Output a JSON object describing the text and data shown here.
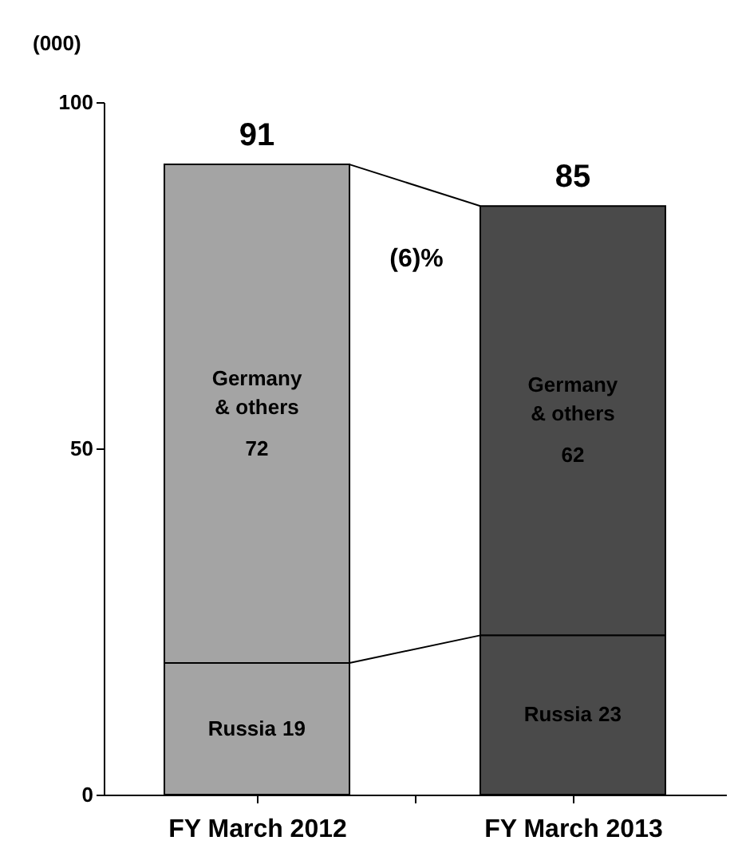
{
  "chart_data": {
    "type": "bar",
    "stacked": true,
    "ylabel": "(000)",
    "categories": [
      "FY March 2012",
      "FY March 2013"
    ],
    "series": [
      {
        "name": "Russia",
        "colors": [
          "#a4a4a4",
          "#4a4a4a"
        ],
        "values": [
          19,
          23
        ]
      },
      {
        "name": "Germany & others",
        "colors": [
          "#a4a4a4",
          "#4a4a4a"
        ],
        "values": [
          72,
          62
        ]
      }
    ],
    "totals": [
      "91",
      "85"
    ],
    "data_labels": true,
    "annotations": [
      "(6)%"
    ],
    "ylim": [
      0,
      100
    ],
    "yticks": [
      0,
      50,
      100
    ],
    "grid": false
  }
}
